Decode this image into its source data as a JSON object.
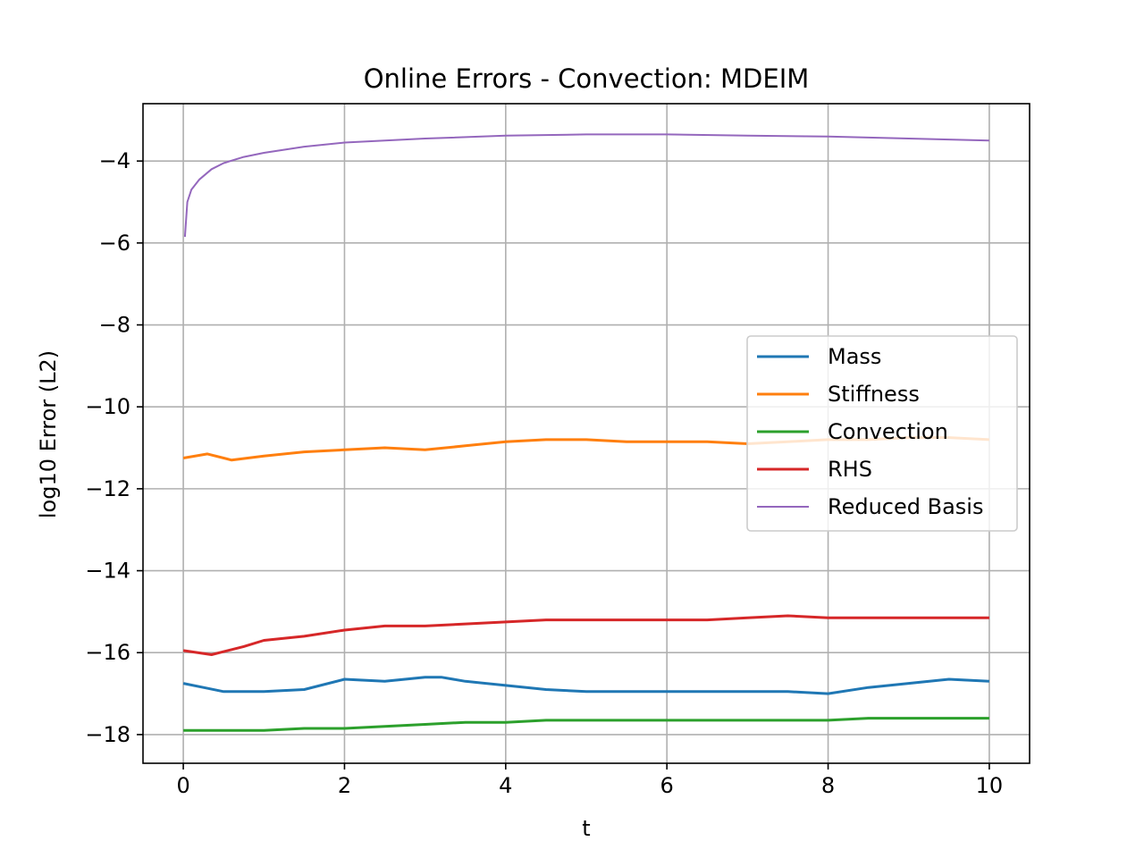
{
  "chart_data": {
    "type": "line",
    "title": "Online Errors - Convection: MDEIM",
    "xlabel": "t",
    "ylabel": "log10 Error (L2)",
    "xlim": [
      -0.5,
      10.5
    ],
    "ylim": [
      -18.7,
      -2.6
    ],
    "xticks": [
      0,
      2,
      4,
      6,
      8,
      10
    ],
    "xtick_labels": [
      "0",
      "2",
      "4",
      "6",
      "8",
      "10"
    ],
    "yticks": [
      -18,
      -16,
      -14,
      -12,
      -10,
      -8,
      -6,
      -4
    ],
    "ytick_labels": [
      "−18",
      "−16",
      "−14",
      "−12",
      "−10",
      "−8",
      "−6",
      "−4"
    ],
    "grid": true,
    "legend_position": "center-right",
    "series": [
      {
        "name": "Mass",
        "color": "#1f77b4",
        "x": [
          0,
          0.25,
          0.5,
          1.0,
          1.5,
          2.0,
          2.5,
          3.0,
          3.2,
          3.5,
          4.0,
          4.5,
          5.0,
          5.5,
          6.0,
          6.5,
          7.0,
          7.5,
          8.0,
          8.5,
          9.0,
          9.5,
          10.0
        ],
        "y": [
          -16.75,
          -16.85,
          -16.95,
          -16.95,
          -16.9,
          -16.65,
          -16.7,
          -16.6,
          -16.6,
          -16.7,
          -16.8,
          -16.9,
          -16.95,
          -16.95,
          -16.95,
          -16.95,
          -16.95,
          -16.95,
          -17.0,
          -16.85,
          -16.75,
          -16.65,
          -16.7
        ]
      },
      {
        "name": "Stiffness",
        "color": "#ff7f0e",
        "x": [
          0,
          0.3,
          0.6,
          1.0,
          1.5,
          2.0,
          2.5,
          3.0,
          3.5,
          4.0,
          4.5,
          5.0,
          5.5,
          6.0,
          6.5,
          7.0,
          7.5,
          8.0,
          8.5,
          9.0,
          9.5,
          10.0
        ],
        "y": [
          -11.25,
          -11.15,
          -11.3,
          -11.2,
          -11.1,
          -11.05,
          -11.0,
          -11.05,
          -10.95,
          -10.85,
          -10.8,
          -10.8,
          -10.85,
          -10.85,
          -10.85,
          -10.9,
          -10.85,
          -10.8,
          -10.8,
          -10.75,
          -10.75,
          -10.8
        ]
      },
      {
        "name": "Convection",
        "color": "#2ca02c",
        "x": [
          0,
          0.5,
          1.0,
          1.5,
          2.0,
          2.5,
          3.0,
          3.5,
          4.0,
          4.5,
          5.0,
          5.5,
          6.0,
          6.5,
          7.0,
          7.5,
          8.0,
          8.5,
          9.0,
          9.5,
          10.0
        ],
        "y": [
          -17.9,
          -17.9,
          -17.9,
          -17.85,
          -17.85,
          -17.8,
          -17.75,
          -17.7,
          -17.7,
          -17.65,
          -17.65,
          -17.65,
          -17.65,
          -17.65,
          -17.65,
          -17.65,
          -17.65,
          -17.6,
          -17.6,
          -17.6,
          -17.6
        ]
      },
      {
        "name": "RHS",
        "color": "#d62728",
        "x": [
          0,
          0.35,
          0.75,
          1.0,
          1.5,
          2.0,
          2.5,
          3.0,
          3.5,
          4.0,
          4.5,
          5.0,
          5.5,
          6.0,
          6.5,
          7.0,
          7.5,
          8.0,
          8.5,
          9.0,
          9.5,
          10.0
        ],
        "y": [
          -15.95,
          -16.05,
          -15.85,
          -15.7,
          -15.6,
          -15.45,
          -15.35,
          -15.35,
          -15.3,
          -15.25,
          -15.2,
          -15.2,
          -15.2,
          -15.2,
          -15.2,
          -15.15,
          -15.1,
          -15.15,
          -15.15,
          -15.15,
          -15.15,
          -15.15
        ]
      },
      {
        "name": "Reduced Basis",
        "color": "#9467bd",
        "x": [
          0.02,
          0.05,
          0.1,
          0.2,
          0.35,
          0.5,
          0.75,
          1.0,
          1.5,
          2.0,
          3.0,
          4.0,
          5.0,
          5.5,
          6.0,
          7.0,
          8.0,
          9.0,
          10.0
        ],
        "y": [
          -5.85,
          -5.0,
          -4.7,
          -4.45,
          -4.2,
          -4.05,
          -3.9,
          -3.8,
          -3.65,
          -3.55,
          -3.45,
          -3.38,
          -3.35,
          -3.35,
          -3.35,
          -3.38,
          -3.4,
          -3.45,
          -3.5
        ]
      }
    ]
  }
}
